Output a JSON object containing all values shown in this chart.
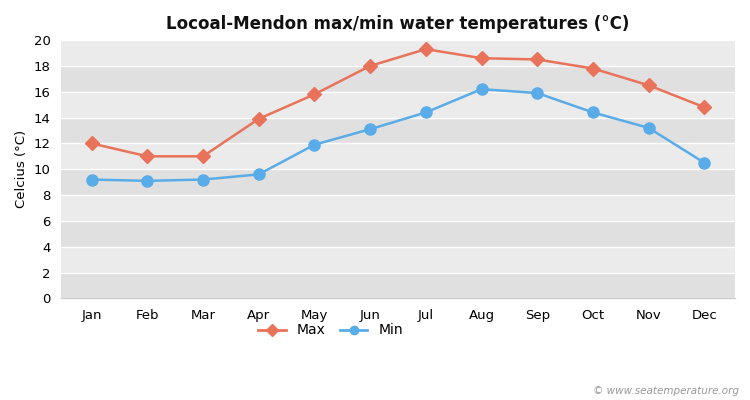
{
  "title": "Locoal-Mendon max/min water temperatures (°C)",
  "ylabel": "Celcius (°C)",
  "months": [
    "Jan",
    "Feb",
    "Mar",
    "Apr",
    "May",
    "Jun",
    "Jul",
    "Aug",
    "Sep",
    "Oct",
    "Nov",
    "Dec"
  ],
  "max_temps": [
    12.0,
    11.0,
    11.0,
    13.9,
    15.8,
    18.0,
    19.3,
    18.6,
    18.5,
    17.8,
    16.5,
    14.8
  ],
  "min_temps": [
    9.2,
    9.1,
    9.2,
    9.6,
    11.9,
    13.1,
    14.4,
    16.2,
    15.9,
    14.4,
    13.2,
    10.5
  ],
  "max_color": "#e8735a",
  "min_color": "#5aace8",
  "fig_bg_color": "#ffffff",
  "band_light": "#ebebeb",
  "band_dark": "#e0e0e0",
  "ylim": [
    0,
    20
  ],
  "yticks": [
    0,
    2,
    4,
    6,
    8,
    10,
    12,
    14,
    16,
    18,
    20
  ],
  "watermark": "© www.seatemperature.org",
  "max_marker": "D",
  "min_marker": "o",
  "marker_size_max": 7,
  "marker_size_min": 8,
  "line_width": 1.8
}
